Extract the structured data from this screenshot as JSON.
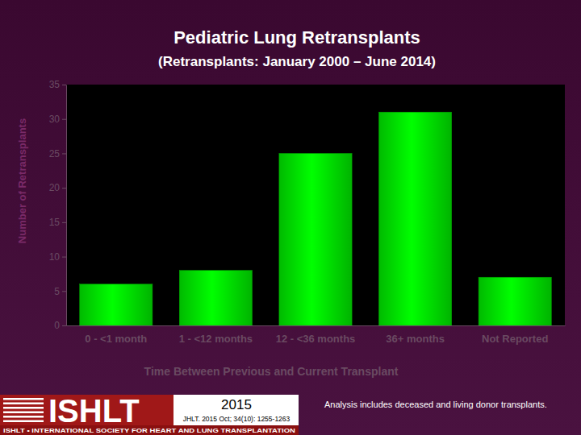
{
  "chart_data": {
    "type": "bar",
    "title": "Pediatric Lung Retransplants",
    "subtitle": "(Retransplants: January 2000 – June 2014)",
    "x_label": "Time Between Previous and Current Transplant",
    "y_label": "Number of Retransplants",
    "categories": [
      "0 - <1 month",
      "1 - <12 months",
      "12 - <36 months",
      "36+ months",
      "Not Reported"
    ],
    "values": [
      6,
      8,
      25,
      31,
      7
    ],
    "color": "#00e600",
    "ylim": [
      0,
      35
    ],
    "yticks": [
      0,
      5,
      10,
      15,
      20,
      25,
      30,
      35
    ],
    "grid": false,
    "annotations": [
      "ISHLT",
      "ISHLT • INTERNATIONAL SOCIETY FOR HEART AND LUNG TRANSPLANTATION",
      "2015",
      "JHLT. 2015 Oct; 34(10): 1255-1263",
      "Analysis includes deceased and living donor transplants."
    ]
  }
}
